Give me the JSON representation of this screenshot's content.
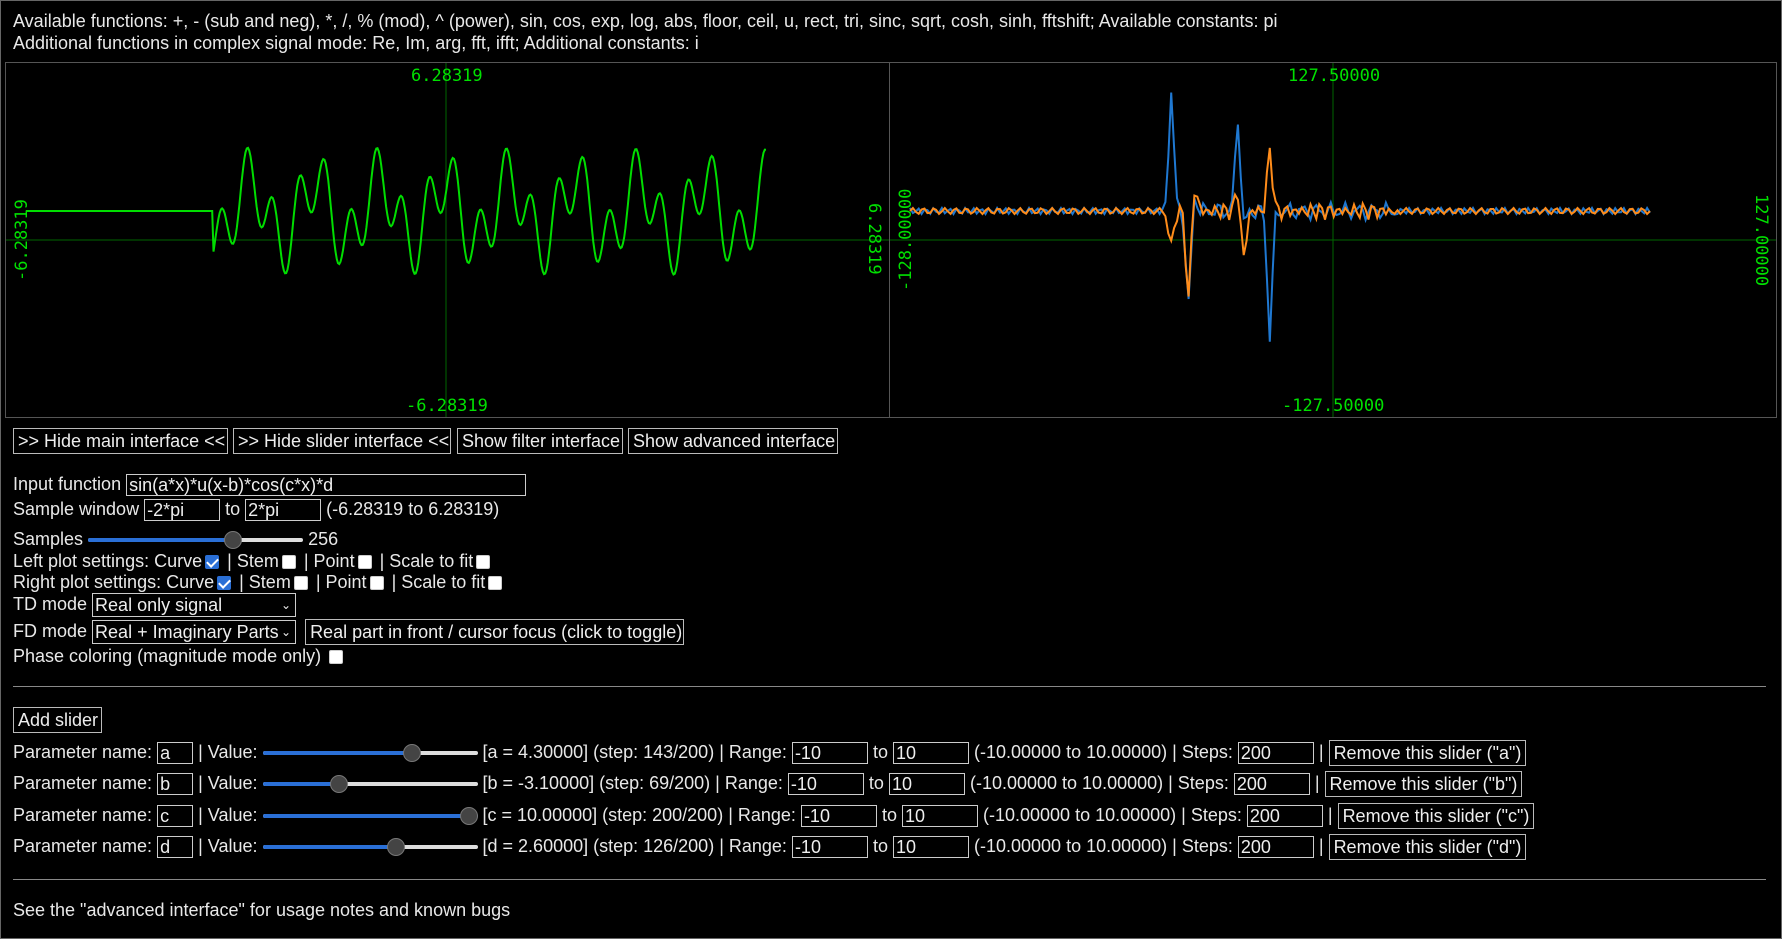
{
  "info": {
    "line1": "Available functions: +, - (sub and neg), *, /, % (mod), ^ (power), sin, cos, exp, log, abs, floor, ceil, u, rect, tri, sinc, sqrt, cosh, sinh, fftshift; Available constants: pi",
    "line2": "Additional functions in complex signal mode: Re, Im, arg, fft, ifft; Additional constants: i"
  },
  "left_plot": {
    "top_label": "6.28319",
    "bottom_label": "-6.28319",
    "left_label": "-6.28319",
    "right_label": "6.28319"
  },
  "right_plot": {
    "top_label": "127.50000",
    "bottom_label": "-127.50000",
    "left_label": "-128.00000",
    "right_label": "127.00000"
  },
  "colors": {
    "td_curve": "#00dd00",
    "fd_real": "#ff8c1a",
    "fd_imag": "#1f78d1",
    "axis": "#006600"
  },
  "buttons": {
    "hide_main": ">> Hide main interface <<",
    "hide_slider": ">> Hide slider interface <<",
    "show_filter": "Show filter interface",
    "show_advanced": "Show advanced interface",
    "toggle_front": "Real part in front / cursor focus (click to toggle)",
    "add_slider": "Add slider"
  },
  "form": {
    "input_function_label": "Input function",
    "input_function_value": "sin(a*x)*u(x-b)*cos(c*x)*d",
    "sample_window_label": "Sample window",
    "sample_from": "-2*pi",
    "to_label": "to",
    "sample_to": "2*pi",
    "sample_range": "(-6.28319 to 6.28319)",
    "samples_label": "Samples",
    "samples_value": "256",
    "samples_fraction": 0.69,
    "left_settings_label": "Left plot settings:",
    "right_settings_label": "Right plot settings:",
    "curve_label": "Curve",
    "stem_label": "| Stem",
    "point_label": "| Point",
    "scale_label": "| Scale to fit",
    "td_mode_label": "TD mode",
    "td_mode_value": "Real only signal",
    "fd_mode_label": "FD mode",
    "fd_mode_value": "Real + Imaginary Parts",
    "phase_label": "Phase coloring (magnitude mode only)"
  },
  "sliders": [
    {
      "name": "a",
      "value_label": "| Value:",
      "info": "[a = 4.30000] (step: 143/200) | Range:",
      "from": "-10",
      "to": "10",
      "range_text": "(-10.00000 to 10.00000) | Steps:",
      "steps": "200",
      "remove": "Remove this slider (\"a\")",
      "fraction": 0.715
    },
    {
      "name": "b",
      "value_label": "| Value:",
      "info": "[b = -3.10000] (step: 69/200) | Range:",
      "from": "-10",
      "to": "10",
      "range_text": "(-10.00000 to 10.00000) | Steps:",
      "steps": "200",
      "remove": "Remove this slider (\"b\")",
      "fraction": 0.345
    },
    {
      "name": "c",
      "value_label": "| Value:",
      "info": "[c = 10.00000] (step: 200/200) | Range:",
      "from": "-10",
      "to": "10",
      "range_text": "(-10.00000 to 10.00000) | Steps:",
      "steps": "200",
      "remove": "Remove this slider (\"c\")",
      "fraction": 1.0
    },
    {
      "name": "d",
      "value_label": "| Value:",
      "info": "[d = 2.60000] (step: 126/200) | Range:",
      "from": "-10",
      "to": "10",
      "range_text": "(-10.00000 to 10.00000) | Steps:",
      "steps": "200",
      "remove": "Remove this slider (\"d\")",
      "fraction": 0.63
    }
  ],
  "param_name_label": "Parameter name:",
  "footer_note": "See the \"advanced interface\" for usage notes and known bugs"
}
